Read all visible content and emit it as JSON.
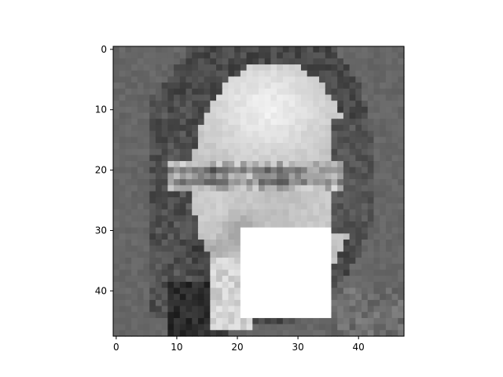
{
  "chart_data": {
    "type": "heatmap",
    "title": "",
    "xlabel": "",
    "ylabel": "",
    "grid": false,
    "colormap": "gray",
    "image_shape": [
      48,
      48
    ],
    "xlim": [
      -0.5,
      47.5
    ],
    "ylim": [
      47.5,
      -0.5
    ],
    "x_ticks": [
      0,
      10,
      20,
      30,
      40
    ],
    "x_tick_labels": [
      "0",
      "10",
      "20",
      "30",
      "40"
    ],
    "y_ticks": [
      0,
      10,
      20,
      30,
      40
    ],
    "y_tick_labels": [
      "0",
      "10",
      "20",
      "30",
      "40"
    ],
    "occlusion_patch": {
      "x0": 21,
      "x1": 35,
      "y0": 30,
      "y1": 44,
      "value": 255
    },
    "image_description_note": null
  }
}
